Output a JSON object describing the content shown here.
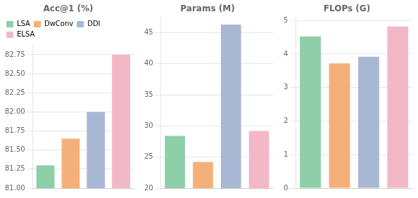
{
  "chart_data": [
    {
      "type": "bar",
      "title": "Acc@1 (%)",
      "categories": [
        "LSA",
        "DwConv",
        "DDI",
        "ELSA"
      ],
      "values": [
        81.3,
        81.65,
        82.0,
        82.75
      ],
      "colors": [
        "#8ecfaa",
        "#f5b07a",
        "#a8b8d4",
        "#f2b8c6"
      ],
      "ylim": [
        81.0,
        82.875
      ],
      "yticks": [
        {
          "value": 81.0,
          "label": "81.00"
        },
        81.25,
        {
          "value": 81.5,
          "label": "81.50"
        },
        81.75,
        {
          "value": 82.0,
          "label": "82.00"
        },
        82.25,
        {
          "value": 82.5,
          "label": "82.50"
        },
        82.75
      ],
      "grid": true,
      "legend": "upper left",
      "tick_labels": "y"
    },
    {
      "type": "bar",
      "title": "Params (M)",
      "categories": [
        "LSA",
        "DwConv",
        "DDI",
        "ELSA"
      ],
      "values": [
        28.4,
        24.2,
        46.3,
        29.2
      ],
      "colors": [
        "#8ecfaa",
        "#f5b07a",
        "#a8b8d4",
        "#f2b8c6"
      ],
      "ylim": [
        20,
        47.5
      ],
      "yticks": [
        20,
        25,
        30,
        35,
        40,
        45
      ],
      "grid": true,
      "tick_labels": "y"
    },
    {
      "type": "bar",
      "title": "FLOPs (G)",
      "categories": [
        "LSA",
        "DwConv",
        "DDI",
        "ELSA"
      ],
      "values": [
        4.52,
        3.72,
        3.92,
        4.82
      ],
      "colors": [
        "#8ecfaa",
        "#f5b07a",
        "#a8b8d4",
        "#f2b8c6"
      ],
      "ylim": [
        0,
        5.1
      ],
      "yticks": [
        0,
        1,
        2,
        3,
        4,
        5
      ],
      "grid": true,
      "tick_labels": "y"
    }
  ]
}
